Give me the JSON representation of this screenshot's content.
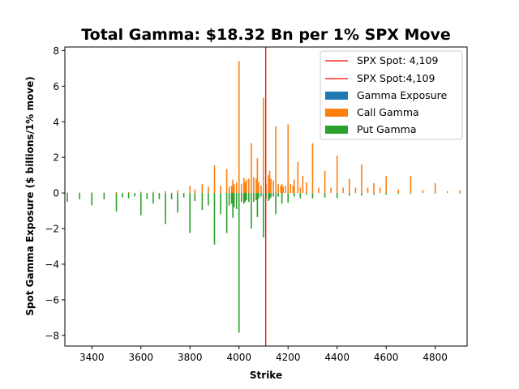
{
  "chart_data": {
    "type": "bar",
    "title": "Total Gamma: $18.32 Bn per 1% SPX Move",
    "xlabel": "Strike",
    "ylabel": "Spot Gamma Exposure ($ billions/1% move)",
    "xlim": [
      3290,
      4930
    ],
    "ylim": [
      -8.6,
      8.2
    ],
    "xticks": [
      3400,
      3600,
      3800,
      4000,
      4200,
      4400,
      4600,
      4800
    ],
    "yticks": [
      -8,
      -6,
      -4,
      -2,
      0,
      2,
      4,
      6,
      8
    ],
    "grid": false,
    "legend_position": "top-right",
    "legend": [
      "SPX Spot: 4,109",
      "SPX Spot:4,109",
      "Gamma Exposure",
      "Call Gamma",
      "Put Gamma"
    ],
    "spot": 4109,
    "colors": {
      "gamma_exposure": "#1f77b4",
      "call_gamma": "#ff7f0e",
      "put_gamma": "#2ca02c",
      "spot_line": "#ff0000"
    },
    "series": [
      {
        "name": "Gamma Exposure",
        "color": "#1f77b4",
        "values": []
      },
      {
        "name": "Call Gamma",
        "color": "#ff7f0e",
        "x": [
          3300,
          3350,
          3400,
          3450,
          3500,
          3550,
          3600,
          3650,
          3700,
          3750,
          3800,
          3820,
          3850,
          3875,
          3900,
          3925,
          3950,
          3960,
          3970,
          3975,
          3980,
          3990,
          4000,
          4010,
          4020,
          4025,
          4030,
          4040,
          4050,
          4060,
          4070,
          4075,
          4080,
          4090,
          4100,
          4110,
          4120,
          4125,
          4130,
          4140,
          4150,
          4160,
          4170,
          4175,
          4180,
          4190,
          4200,
          4210,
          4220,
          4225,
          4240,
          4250,
          4260,
          4275,
          4300,
          4325,
          4350,
          4375,
          4400,
          4425,
          4450,
          4475,
          4500,
          4525,
          4550,
          4575,
          4600,
          4650,
          4700,
          4750,
          4800,
          4850,
          4900
        ],
        "values": [
          0.03,
          0.03,
          0.03,
          0.03,
          0.05,
          0.05,
          0.07,
          0.07,
          0.1,
          0.15,
          0.4,
          0.2,
          0.5,
          0.35,
          1.55,
          0.4,
          1.35,
          0.35,
          0.4,
          0.75,
          0.5,
          0.6,
          7.4,
          0.5,
          0.85,
          0.6,
          0.75,
          0.8,
          2.8,
          0.9,
          0.8,
          1.95,
          0.6,
          0.4,
          5.35,
          0.5,
          1.0,
          1.25,
          0.8,
          0.7,
          3.75,
          0.5,
          0.4,
          0.5,
          0.35,
          0.4,
          3.85,
          0.5,
          0.4,
          0.75,
          1.75,
          0.3,
          0.95,
          0.6,
          2.8,
          0.3,
          1.25,
          0.3,
          2.1,
          0.3,
          0.8,
          0.3,
          1.6,
          0.3,
          0.55,
          0.3,
          0.95,
          0.2,
          0.95,
          0.15,
          0.55,
          0.1,
          0.15
        ]
      },
      {
        "name": "Put Gamma",
        "color": "#2ca02c",
        "x": [
          3300,
          3350,
          3400,
          3450,
          3500,
          3525,
          3550,
          3575,
          3600,
          3625,
          3650,
          3675,
          3700,
          3725,
          3750,
          3775,
          3800,
          3820,
          3850,
          3875,
          3900,
          3925,
          3950,
          3960,
          3970,
          3975,
          3980,
          3990,
          4000,
          4010,
          4020,
          4025,
          4030,
          4040,
          4050,
          4060,
          4070,
          4075,
          4080,
          4090,
          4100,
          4110,
          4120,
          4125,
          4130,
          4140,
          4150,
          4160,
          4175,
          4200,
          4225,
          4250,
          4275,
          4300,
          4350,
          4400,
          4450,
          4500,
          4550,
          4600,
          4650,
          4700,
          4800,
          4900
        ],
        "values": [
          -0.5,
          -0.35,
          -0.7,
          -0.35,
          -1.05,
          -0.25,
          -0.3,
          -0.2,
          -1.25,
          -0.35,
          -0.6,
          -0.35,
          -1.75,
          -0.35,
          -1.1,
          -0.25,
          -2.25,
          -0.45,
          -0.95,
          -0.7,
          -2.9,
          -1.2,
          -2.25,
          -0.7,
          -0.6,
          -1.4,
          -0.8,
          -0.9,
          -7.85,
          -0.5,
          -0.6,
          -0.5,
          -0.4,
          -0.5,
          -2.0,
          -0.5,
          -0.4,
          -1.35,
          -0.3,
          -0.2,
          -2.5,
          -0.3,
          -0.45,
          -0.35,
          -0.25,
          -0.2,
          -1.2,
          -0.2,
          -0.6,
          -0.55,
          -0.2,
          -0.3,
          -0.1,
          -0.3,
          -0.25,
          -0.3,
          -0.15,
          -0.15,
          -0.1,
          -0.1,
          -0.05,
          -0.05,
          -0.03,
          -0.02
        ]
      }
    ]
  }
}
